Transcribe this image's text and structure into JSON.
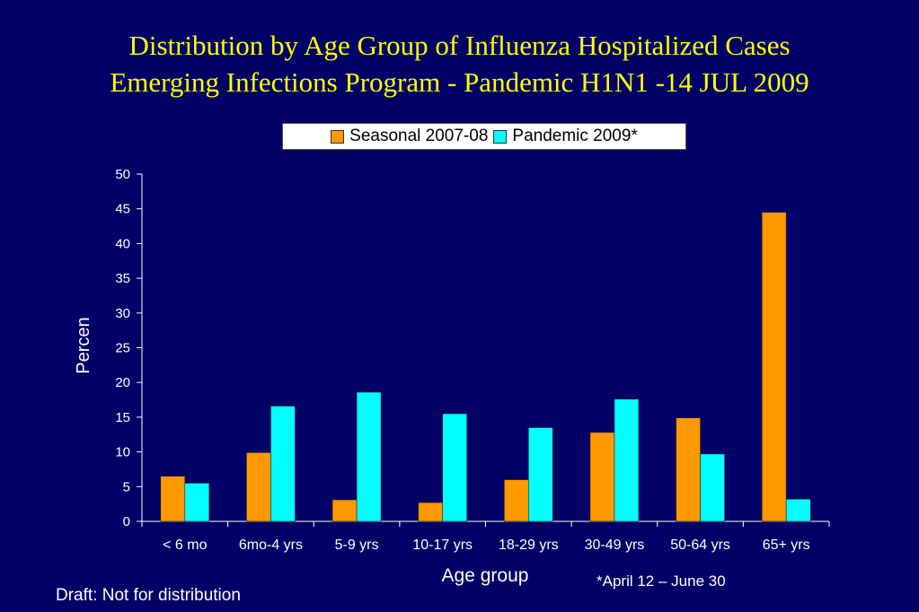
{
  "title": {
    "line1": "Distribution by Age Group of Influenza Hospitalized Cases",
    "line2": "Emerging Infections Program - Pandemic H1N1 -14 JUL 2009"
  },
  "colors": {
    "background": "#000066",
    "title": "#ffff00",
    "seasonal": "#ff9900",
    "pandemic": "#00ffff",
    "text": "#ffffff"
  },
  "chart_data": {
    "type": "bar",
    "title": "",
    "xlabel": "Age group",
    "ylabel": "Percen",
    "ylim": [
      0,
      50
    ],
    "yticks": [
      0,
      5,
      10,
      15,
      20,
      25,
      30,
      35,
      40,
      45,
      50
    ],
    "categories": [
      "< 6 mo",
      "6mo-4 yrs",
      "5-9 yrs",
      "10-17 yrs",
      "18-29 yrs",
      "30-49 yrs",
      "50-64 yrs",
      "65+ yrs"
    ],
    "series": [
      {
        "name": "Seasonal 2007-08",
        "color": "#ff9900",
        "values": [
          6.5,
          9.9,
          3.1,
          2.7,
          6.0,
          12.8,
          14.9,
          44.5
        ]
      },
      {
        "name": "Pandemic 2009*",
        "color": "#00ffff",
        "values": [
          5.5,
          16.6,
          18.6,
          15.5,
          13.5,
          17.6,
          9.7,
          3.2
        ]
      }
    ],
    "grid": false,
    "legend_position": "top"
  },
  "footer": {
    "draft": "Draft: Not for distribution",
    "note": "*April 12 – June 30"
  }
}
